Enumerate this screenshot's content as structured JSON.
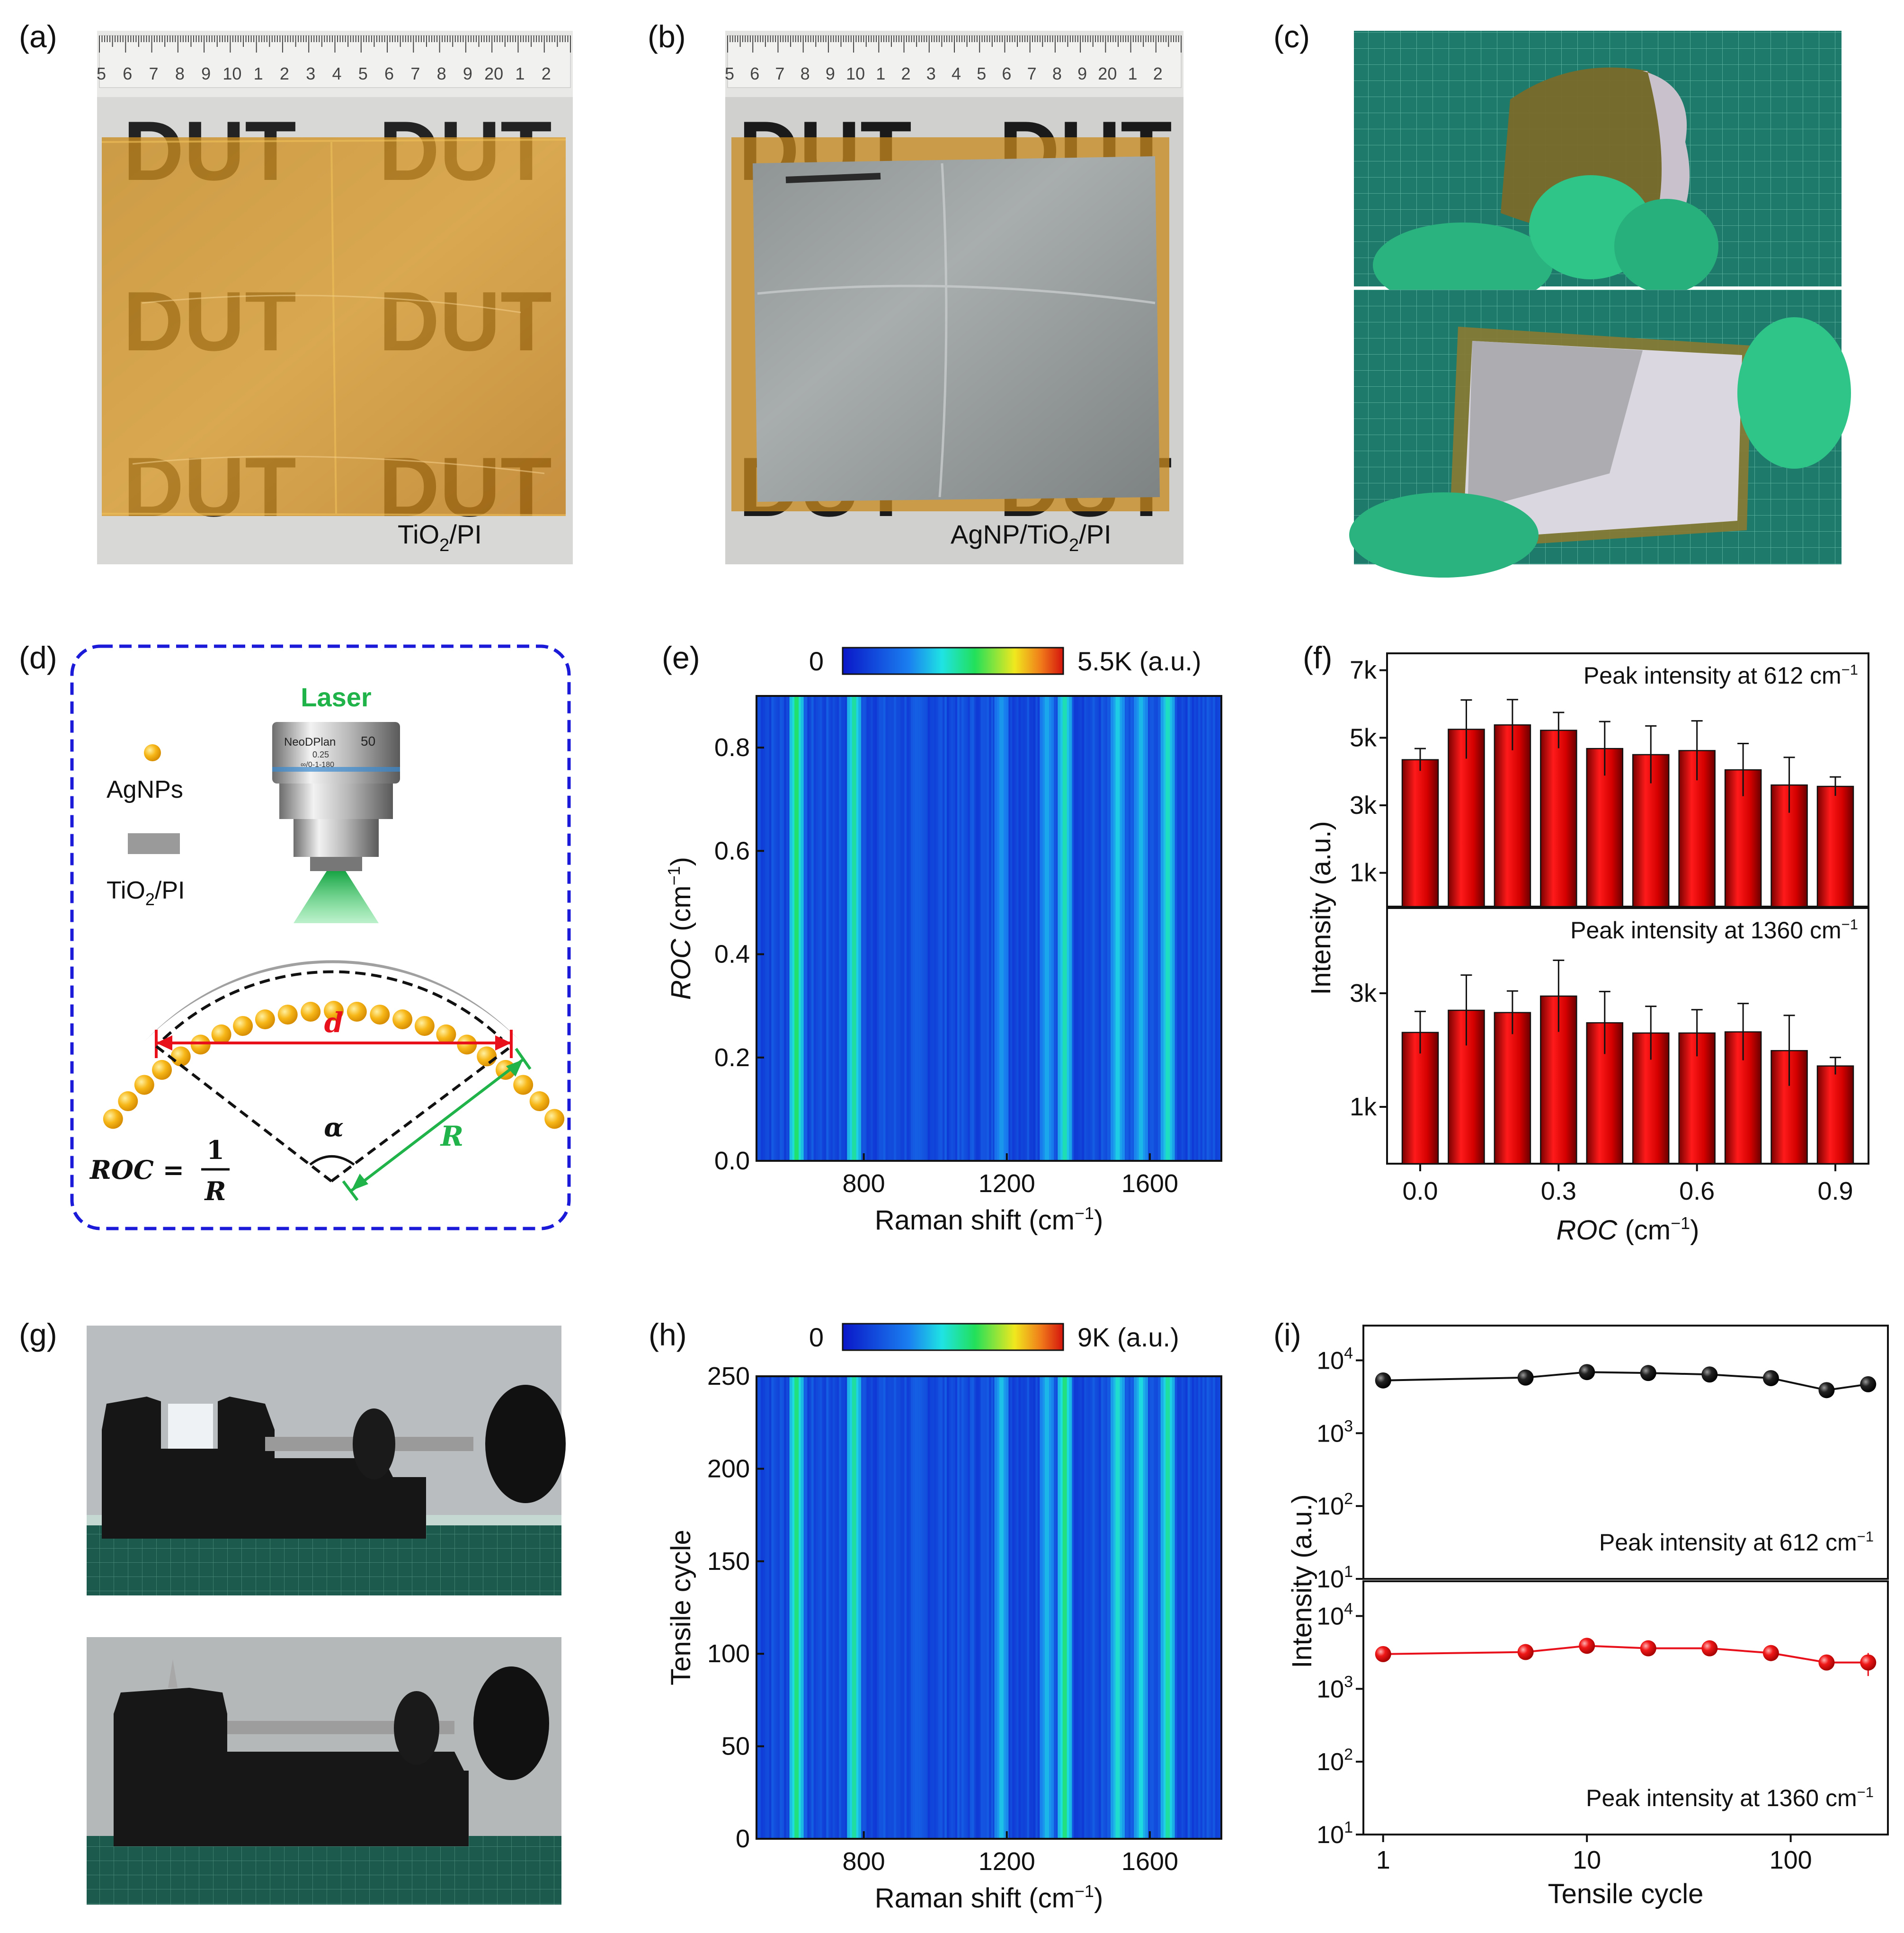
{
  "panels": {
    "a": {
      "letter": "(a)",
      "caption": "TiO",
      "sub": "2",
      "tail": "/PI",
      "stamp": "DUT",
      "ruler": [
        "5",
        "6",
        "7",
        "8",
        "9",
        "10",
        "1",
        "2",
        "3",
        "4",
        "5",
        "6",
        "7",
        "8",
        "9",
        "20",
        "1",
        "2"
      ]
    },
    "b": {
      "letter": "(b)",
      "caption": "AgNP/TiO",
      "sub": "2",
      "tail": "/PI",
      "stamp": "DUT",
      "ruler": [
        "5",
        "6",
        "7",
        "8",
        "9",
        "10",
        "1",
        "2",
        "3",
        "4",
        "5",
        "6",
        "7",
        "8",
        "9",
        "20",
        "1",
        "2"
      ]
    },
    "c": {
      "letter": "(c)"
    },
    "d": {
      "letter": "(d)",
      "laser": "Laser",
      "lens_brand": "NeoDPlan",
      "lens_mag": "50",
      "lens_na": "0.25",
      "lens_spec": "∞/0-1-180",
      "agnps": "AgNPs",
      "tio2_pi": "TiO",
      "tio2_sub": "2",
      "tio2_tail": "/PI",
      "d": "d",
      "R": "R",
      "alpha": "α",
      "roc_lhs": "ROC =",
      "roc_num": "1",
      "roc_den": "R"
    },
    "e": {
      "letter": "(e)"
    },
    "f": {
      "letter": "(f)"
    },
    "g": {
      "letter": "(g)"
    },
    "h": {
      "letter": "(h)"
    },
    "i": {
      "letter": "(i)"
    }
  },
  "colors": {
    "bar_red": "#d40000",
    "accent_blue": "#1a1ad8",
    "laser_green": "#1fb34a",
    "red_line": "#e8101b"
  },
  "chart_data": [
    {
      "id": "e",
      "type": "heatmap",
      "title": "",
      "colorbar": {
        "min_label": "0",
        "max_label": "5.5K (a.u.)",
        "min": 0,
        "max": 5500
      },
      "xlabel": "Raman shift (cm",
      "xlabel_sup": "−1",
      "xlabel_end": ")",
      "ylabel": "ROC",
      "ylabel_units": " (cm",
      "ylabel_sup": "−1",
      "ylabel_end": ")",
      "xlim": [
        500,
        1800
      ],
      "ylim": [
        0,
        0.9
      ],
      "xticks": [
        800,
        1200,
        1600
      ],
      "xtick_labels": [
        "800",
        "1200",
        "1600"
      ],
      "yticks": [
        0.0,
        0.2,
        0.4,
        0.6,
        0.8
      ],
      "ytick_labels": [
        "0.0",
        "0.2",
        "0.4",
        "0.6",
        "0.8"
      ],
      "peaks": [
        {
          "x": 612,
          "intensity": 0.62
        },
        {
          "x": 773,
          "intensity": 0.55
        },
        {
          "x": 1185,
          "intensity": 0.32
        },
        {
          "x": 1312,
          "intensity": 0.35
        },
        {
          "x": 1362,
          "intensity": 0.52
        },
        {
          "x": 1510,
          "intensity": 0.42
        },
        {
          "x": 1575,
          "intensity": 0.38
        },
        {
          "x": 1650,
          "intensity": 0.5
        }
      ]
    },
    {
      "id": "f",
      "type": "bar",
      "xlabel": "ROC",
      "xlabel_units": " (cm",
      "xlabel_sup": "−1",
      "xlabel_end": ")",
      "ylabel": "Intensity (a.u.)",
      "x": [
        0.0,
        0.1,
        0.2,
        0.3,
        0.4,
        0.5,
        0.6,
        0.7,
        0.8,
        0.9
      ],
      "xticks": [
        0.0,
        0.3,
        0.6,
        0.9
      ],
      "xtick_labels": [
        "0.0",
        "0.3",
        "0.6",
        "0.9"
      ],
      "series": [
        {
          "name": "Peak intensity at 612 cm",
          "sup": "−1",
          "values": [
            4350,
            5250,
            5380,
            5220,
            4680,
            4500,
            4620,
            4050,
            3600,
            3560
          ],
          "errors": [
            330,
            870,
            750,
            530,
            800,
            850,
            880,
            780,
            820,
            280
          ],
          "ylim": [
            0,
            7500
          ],
          "yticks": [
            1000,
            3000,
            5000,
            7000
          ],
          "ytick_labels": [
            "1k",
            "3k",
            "5k",
            "7k"
          ]
        },
        {
          "name": "Peak intensity at 1360 cm",
          "sup": "−1",
          "values": [
            2310,
            2700,
            2660,
            2950,
            2480,
            2300,
            2300,
            2320,
            1990,
            1720
          ],
          "errors": [
            370,
            620,
            380,
            630,
            550,
            470,
            410,
            500,
            620,
            150
          ],
          "ylim": [
            0,
            4500
          ],
          "yticks": [
            1000,
            3000
          ],
          "ytick_labels": [
            "1k",
            "3k"
          ]
        }
      ]
    },
    {
      "id": "h",
      "type": "heatmap",
      "colorbar": {
        "min_label": "0",
        "max_label": "9K (a.u.)",
        "min": 0,
        "max": 9000
      },
      "xlabel": "Raman shift (cm",
      "xlabel_sup": "−1",
      "xlabel_end": ")",
      "ylabel": "Tensile cycle",
      "xlim": [
        500,
        1800
      ],
      "ylim": [
        0,
        250
      ],
      "xticks": [
        800,
        1200,
        1600
      ],
      "xtick_labels": [
        "800",
        "1200",
        "1600"
      ],
      "yticks": [
        0,
        50,
        100,
        150,
        200,
        250
      ],
      "ytick_labels": [
        "0",
        "50",
        "100",
        "150",
        "200",
        "250"
      ],
      "peaks": [
        {
          "x": 612,
          "intensity": 0.6
        },
        {
          "x": 773,
          "intensity": 0.55
        },
        {
          "x": 1185,
          "intensity": 0.4
        },
        {
          "x": 1312,
          "intensity": 0.38
        },
        {
          "x": 1362,
          "intensity": 0.6
        },
        {
          "x": 1510,
          "intensity": 0.48
        },
        {
          "x": 1575,
          "intensity": 0.45
        },
        {
          "x": 1650,
          "intensity": 0.55
        }
      ]
    },
    {
      "id": "i",
      "type": "line",
      "xscale": "log",
      "yscale": "log",
      "xlabel": "Tensile cycle",
      "ylabel": "Intensity (a.u.)",
      "xlim": [
        0.8,
        300
      ],
      "ylim": [
        10,
        30000
      ],
      "xticks": [
        1,
        10,
        100
      ],
      "xtick_labels": [
        "1",
        "10",
        "100"
      ],
      "yticks": [
        10,
        100,
        1000,
        10000
      ],
      "ytick_base": "10",
      "ytick_exps": [
        "1",
        "2",
        "3",
        "4"
      ],
      "x": [
        1,
        5,
        10,
        20,
        40,
        80,
        150,
        240
      ],
      "series": [
        {
          "name": "Peak intensity at 612 cm",
          "sup": "−1",
          "color": "#111111",
          "values": [
            5300,
            5800,
            6900,
            6700,
            6400,
            5700,
            3900,
            4700
          ],
          "errors": [
            350,
            500,
            700,
            600,
            600,
            1000,
            500,
            800
          ]
        },
        {
          "name": "Peak intensity at 1360 cm",
          "sup": "−1",
          "color": "#e8101b",
          "values": [
            3000,
            3200,
            3900,
            3600,
            3600,
            3100,
            2300,
            2300
          ],
          "errors": [
            250,
            300,
            500,
            400,
            400,
            700,
            500,
            800
          ]
        }
      ]
    }
  ]
}
